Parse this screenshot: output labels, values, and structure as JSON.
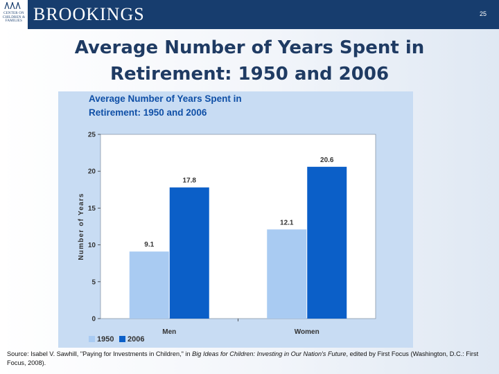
{
  "header": {
    "brand": "BROOKINGS",
    "logo_text": "CENTER ON CHILDREN & FAMILIES",
    "page_number": "25"
  },
  "slide_title_line1": "Average Number of Years Spent in",
  "slide_title_line2": "Retirement: 1950 and 2006",
  "chart_data": {
    "type": "bar",
    "title_line1": "Average Number of Years Spent in",
    "title_line2": "Retirement: 1950 and 2006",
    "categories": [
      "Men",
      "Women"
    ],
    "series": [
      {
        "name": "1950",
        "values": [
          9.1,
          12.1
        ],
        "color": "#a9cbf2"
      },
      {
        "name": "2006",
        "values": [
          17.8,
          20.6
        ],
        "color": "#0b5fc8"
      }
    ],
    "ylabel": "Number of Years",
    "xlabel": "",
    "ylim": [
      0,
      25
    ],
    "yticks": [
      0,
      5,
      10,
      15,
      20,
      25
    ],
    "grid": false,
    "legend": "bottom-left",
    "panel_color": "#c8dcf3",
    "title_color": "#0f4fa6"
  },
  "source": {
    "prefix": "Source: Isabel V. Sawhill, \"Paying for Investments in Children,\" in ",
    "book": "Big Ideas for Children: Investing in Our Nation's Future",
    "suffix": ", edited by First Focus (Washington, D.C.: First Focus, 2008)."
  }
}
